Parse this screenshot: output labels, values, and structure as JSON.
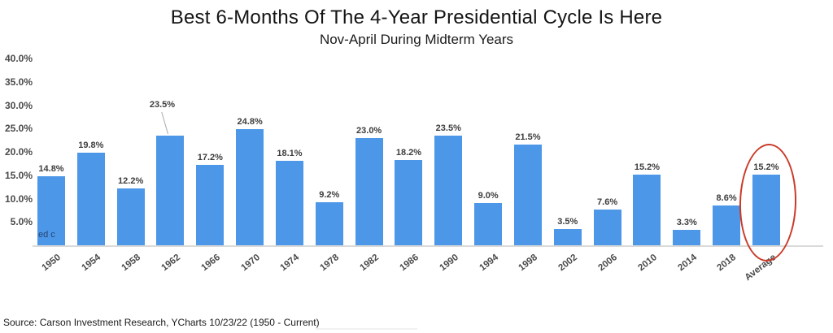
{
  "header": {
    "title": "Best 6-Months Of The 4-Year Presidential Cycle Is Here",
    "subtitle": "Nov-April During Midterm Years"
  },
  "footer": {
    "source": "Source: Carson Investment Research, YCharts 10/23/22 (1950 - Current)"
  },
  "watermark_fragment": "ed c",
  "chart_data": {
    "type": "bar",
    "title": "Best 6-Months Of The 4-Year Presidential Cycle Is Here",
    "subtitle": "Nov-April During Midterm Years",
    "categories": [
      "1950",
      "1954",
      "1958",
      "1962",
      "1966",
      "1970",
      "1974",
      "1978",
      "1982",
      "1986",
      "1990",
      "1994",
      "1998",
      "2002",
      "2006",
      "2010",
      "2014",
      "2018",
      "Average"
    ],
    "values": [
      14.8,
      19.8,
      12.2,
      23.5,
      17.2,
      24.8,
      18.1,
      9.2,
      23.0,
      18.2,
      23.5,
      9.0,
      21.5,
      3.5,
      7.6,
      15.2,
      3.3,
      8.6,
      15.2
    ],
    "value_label_format": "percent_one_decimal",
    "xlabel": "",
    "ylabel": "",
    "ylim": [
      0,
      40
    ],
    "y_ticks": [
      "40.0%",
      "35.0%",
      "30.0%",
      "25.0%",
      "20.0%",
      "15.0%",
      "10.0%",
      "5.0%"
    ],
    "grid": false,
    "legend": false,
    "bar_color": "#4c97e8",
    "axis_line_color": "#dadada",
    "label_color": "#3d3d3d",
    "tick_color": "#4a4a4a",
    "callout_label_category": "1962",
    "highlight": {
      "category": "Average",
      "shape": "ellipse",
      "color": "#cb3a28"
    }
  }
}
